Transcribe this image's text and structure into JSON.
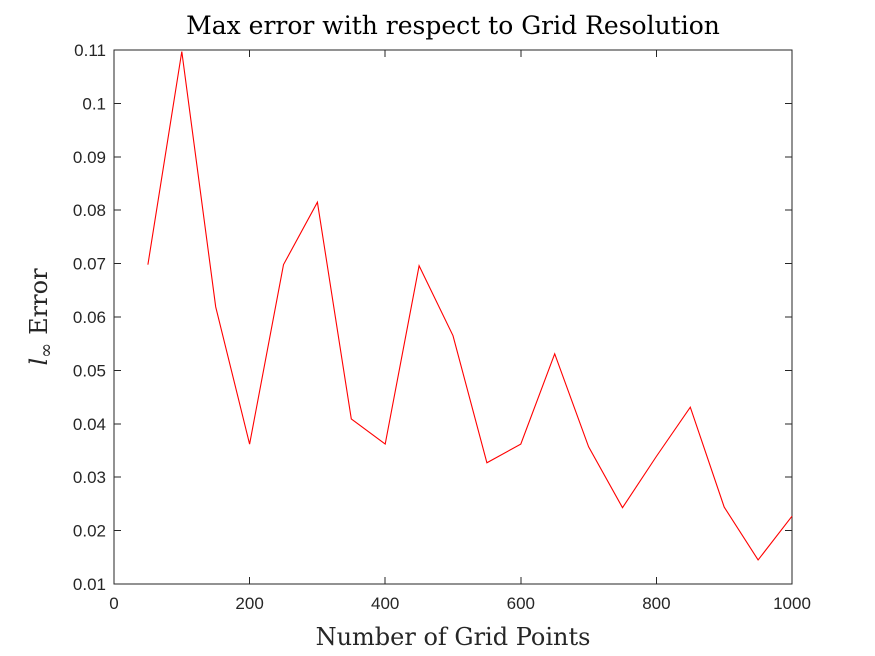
{
  "chart_data": {
    "type": "line",
    "title": "Max error with respect to Grid Resolution",
    "xlabel": "Number of Grid Points",
    "ylabel": {
      "symbol": "l",
      "subscript": "∞",
      "text": "Error"
    },
    "xlim": [
      0,
      1000
    ],
    "ylim": [
      0.01,
      0.11
    ],
    "xticks": [
      0,
      200,
      400,
      600,
      800,
      1000
    ],
    "yticks": [
      0.01,
      0.02,
      0.03,
      0.04,
      0.05,
      0.06,
      0.07,
      0.08,
      0.09,
      0.1,
      0.11
    ],
    "xtick_labels": [
      "0",
      "200",
      "400",
      "600",
      "800",
      "1000"
    ],
    "ytick_labels": [
      "0.01",
      "0.02",
      "0.03",
      "0.04",
      "0.05",
      "0.06",
      "0.07",
      "0.08",
      "0.09",
      "0.1",
      "0.11"
    ],
    "grid": false,
    "box": true,
    "series": [
      {
        "color": "#ff0000",
        "x": [
          50,
          100,
          150,
          200,
          250,
          300,
          350,
          400,
          450,
          500,
          550,
          600,
          650,
          700,
          750,
          800,
          850,
          900,
          950,
          1000
        ],
        "values": [
          0.0698,
          0.1097,
          0.0619,
          0.0362,
          0.0698,
          0.0815,
          0.0409,
          0.0362,
          0.0696,
          0.0565,
          0.0327,
          0.0362,
          0.0531,
          0.0357,
          0.0243,
          0.0339,
          0.0431,
          0.0244,
          0.0145,
          0.0227
        ]
      }
    ]
  }
}
